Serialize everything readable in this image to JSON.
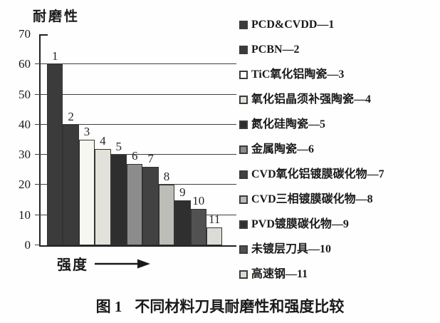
{
  "figure": {
    "caption_label": "图 1",
    "caption_text": "不同材料刀具耐磨性和强度比较"
  },
  "chart_data": {
    "type": "bar",
    "title": "",
    "ylabel": "耐磨性",
    "xlabel": "强度",
    "ylim": [
      0,
      70
    ],
    "yticks": [
      0,
      10,
      20,
      30,
      40,
      50,
      60,
      70
    ],
    "grid": true,
    "legend_position": "right",
    "categories": [
      "1",
      "2",
      "3",
      "4",
      "5",
      "6",
      "7",
      "8",
      "9",
      "10",
      "11"
    ],
    "values": [
      60,
      40,
      35,
      32,
      30,
      27,
      26,
      20,
      15,
      12,
      6
    ],
    "bar_colors": [
      "#3b3b3b",
      "#3b3b3b",
      "#f7f7f2",
      "#e2e2db",
      "#2e2e2e",
      "#8c8c8c",
      "#424242",
      "#bdbdb8",
      "#2f2f2f",
      "#515151",
      "#dcdcd6"
    ],
    "legend": [
      {
        "label": "PCD&CVDD—1",
        "color": "#3b3b3b"
      },
      {
        "label": "PCBN—2",
        "color": "#3b3b3b"
      },
      {
        "label": "TiC氧化铝陶瓷—3",
        "color": "#ffffff"
      },
      {
        "label": "氧化铝晶须补强陶瓷—4",
        "color": "#e2e2db"
      },
      {
        "label": "氮化硅陶瓷—5",
        "color": "#2e2e2e"
      },
      {
        "label": "金属陶瓷—6",
        "color": "#8c8c8c"
      },
      {
        "label": "CVD氧化铝镀膜碳化物—7",
        "color": "#424242"
      },
      {
        "label": "CVD三相镀膜碳化物—8",
        "color": "#bdbdb8"
      },
      {
        "label": "PVD镀膜碳化物—9",
        "color": "#2f2f2f"
      },
      {
        "label": "未镀层刀具—10",
        "color": "#515151"
      },
      {
        "label": "高速钢—11",
        "color": "#dcdcd6"
      }
    ]
  }
}
